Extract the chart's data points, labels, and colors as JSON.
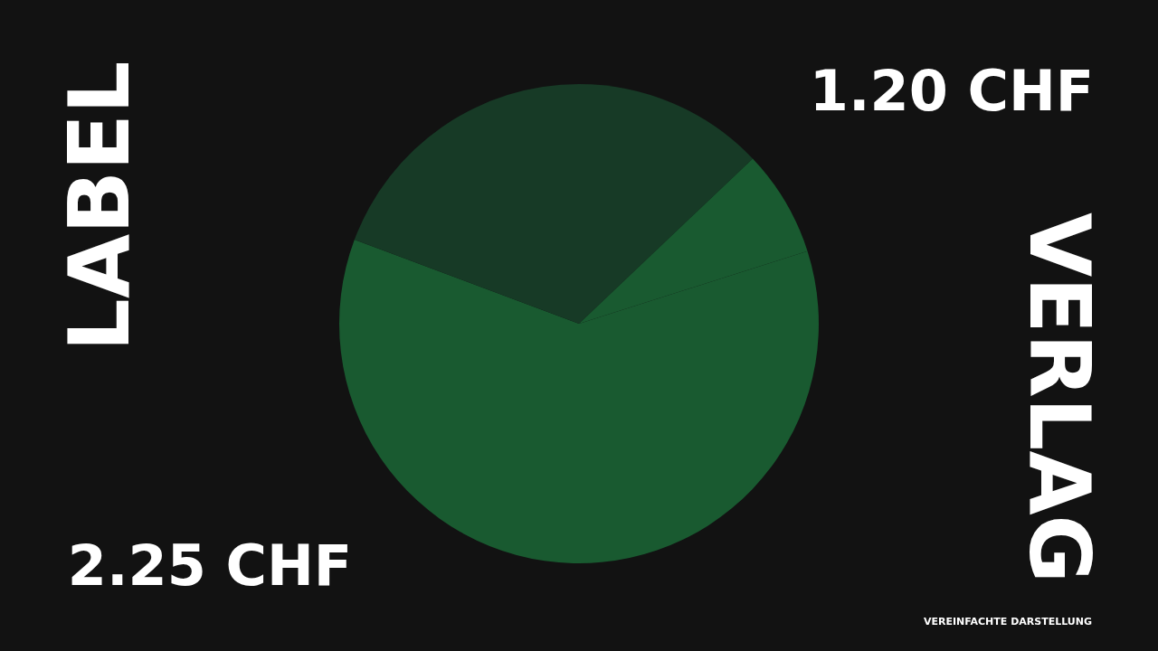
{
  "chart_data": {
    "type": "pie",
    "categories": [
      null,
      null,
      null,
      null
    ],
    "values": [
      12.9,
      7.2,
      60.6,
      19.3
    ],
    "colors": [
      "#173a26",
      "#195a30",
      "#195a30",
      "#173a26"
    ],
    "annotations": [
      "LABEL",
      "1.20 CHF",
      "VERLAG",
      "2.25 CHF",
      "VEREINFACHTE DARSTELLUNG"
    ]
  }
}
